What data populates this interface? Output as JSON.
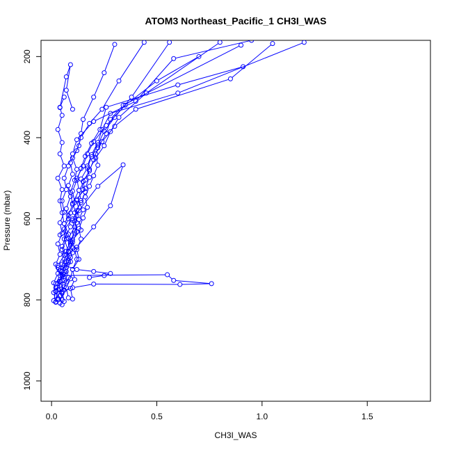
{
  "chart_data": {
    "type": "line",
    "title": "ATOM3 Northeast_Pacific_1 CH3I_WAS",
    "xlabel": "CH3I_WAS",
    "ylabel": "Pressure (mbar)",
    "xlim": [
      -0.05,
      1.8
    ],
    "ylim": [
      1050,
      160
    ],
    "y_reversed": true,
    "grid": false,
    "legend": "none",
    "marker": "open-circle",
    "color": "#0000ff",
    "x_ticks": [
      0,
      0.5,
      1,
      1.5
    ],
    "x_tick_labels": [
      "0.0",
      "0.5",
      "1.0",
      "1.5"
    ],
    "y_ticks": [
      200,
      400,
      600,
      800,
      1000
    ],
    "y_tick_labels": [
      "200",
      "400",
      "600",
      "800",
      "1000"
    ],
    "series": [
      {
        "x": [
          0.02,
          0.01,
          0.02,
          0.04,
          0.03,
          0.06,
          0.05,
          0.07,
          0.06,
          0.05,
          0.04,
          0.05,
          0.03,
          0.06,
          0.04,
          0.05,
          0.03,
          0.05,
          0.04,
          0.06
        ],
        "y": [
          805,
          782,
          760,
          740,
          715,
          690,
          668,
          640,
          612,
          585,
          556,
          528,
          500,
          470,
          440,
          412,
          380,
          345,
          325,
          300
        ]
      },
      {
        "x": [
          0.03,
          0.02,
          0.04,
          0.05,
          0.07,
          0.08,
          0.06,
          0.09,
          0.08,
          0.1,
          0.09,
          0.11,
          0.12,
          0.1,
          0.13,
          0.14,
          0.15,
          0.2,
          0.25,
          0.3
        ],
        "y": [
          800,
          778,
          755,
          730,
          705,
          680,
          650,
          620,
          592,
          565,
          535,
          505,
          478,
          450,
          420,
          390,
          355,
          300,
          240,
          170
        ]
      },
      {
        "x": [
          0.05,
          0.04,
          0.06,
          0.08,
          0.07,
          0.09,
          0.1,
          0.08,
          0.11,
          0.12,
          0.1,
          0.13,
          0.12,
          0.15,
          0.17,
          0.2,
          0.26,
          0.35,
          0.5,
          0.7
        ],
        "y": [
          812,
          790,
          768,
          745,
          720,
          695,
          672,
          648,
          620,
          592,
          562,
          530,
          500,
          470,
          440,
          410,
          370,
          320,
          260,
          200
        ]
      },
      {
        "x": [
          0.02,
          0.03,
          0.05,
          0.04,
          0.06,
          0.05,
          0.07,
          0.06,
          0.08,
          0.07,
          0.09,
          0.08,
          0.1,
          0.09,
          0.12,
          0.14,
          0.18,
          0.24,
          0.32,
          0.44
        ],
        "y": [
          806,
          775,
          752,
          728,
          700,
          676,
          650,
          625,
          600,
          575,
          545,
          518,
          490,
          462,
          432,
          400,
          365,
          330,
          260,
          165
        ]
      },
      {
        "x": [
          0.08,
          0.07,
          0.09,
          0.1,
          0.12,
          0.11,
          0.1,
          0.14,
          0.13,
          0.15,
          0.12,
          0.16,
          0.18,
          0.17,
          0.19,
          0.22,
          0.24,
          0.28,
          0.6,
          1.2
        ],
        "y": [
          795,
          770,
          748,
          725,
          700,
          676,
          652,
          628,
          602,
          578,
          552,
          525,
          498,
          470,
          442,
          412,
          380,
          340,
          290,
          165
        ]
      },
      {
        "x": [
          0.04,
          0.05,
          0.03,
          0.06,
          0.05,
          0.07,
          0.09,
          0.08,
          0.06,
          0.09,
          0.11,
          0.1,
          0.12,
          0.14,
          0.16,
          0.19,
          0.23,
          0.26,
          0.6,
          0.91
        ],
        "y": [
          808,
          784,
          760,
          737,
          712,
          688,
          664,
          638,
          612,
          586,
          560,
          532,
          505,
          476,
          446,
          414,
          380,
          325,
          270,
          225
        ]
      },
      {
        "x": [
          0.01,
          0.02,
          0.01,
          0.03,
          0.02,
          0.04,
          0.03,
          0.05,
          0.04,
          0.06,
          0.05,
          0.07,
          0.06,
          0.08,
          0.1,
          0.12,
          0.2,
          0.4,
          0.58,
          0.95
        ],
        "y": [
          802,
          780,
          758,
          735,
          712,
          688,
          662,
          636,
          610,
          584,
          556,
          528,
          500,
          470,
          440,
          405,
          360,
          310,
          205,
          160
        ]
      },
      {
        "x": [
          0.1,
          0.09,
          0.11,
          0.1,
          0.13,
          0.12,
          0.14,
          0.13,
          0.15,
          0.17,
          0.16,
          0.18,
          0.2,
          0.22,
          0.21,
          0.24,
          0.3,
          0.4,
          0.85,
          1.05
        ],
        "y": [
          798,
          772,
          750,
          725,
          700,
          676,
          650,
          624,
          598,
          572,
          546,
          520,
          494,
          468,
          440,
          410,
          372,
          330,
          255,
          168
        ]
      },
      {
        "x": [
          0.06,
          0.05,
          0.07,
          0.06,
          0.08,
          0.1,
          0.09,
          0.11,
          0.12,
          0.11,
          0.14,
          0.16,
          0.15,
          0.18,
          0.2,
          0.22,
          0.26,
          0.28,
          0.34,
          0.9
        ],
        "y": [
          804,
          780,
          756,
          732,
          708,
          684,
          660,
          635,
          610,
          585,
          560,
          534,
          508,
          482,
          455,
          425,
          390,
          355,
          320,
          172
        ]
      },
      {
        "x": [
          0.03,
          0.04,
          0.06,
          0.05,
          0.08,
          0.07,
          0.09,
          0.11,
          0.1,
          0.12,
          0.14,
          0.13,
          0.16,
          0.18,
          0.21,
          0.25,
          0.28,
          0.32,
          0.45,
          0.8
        ],
        "y": [
          796,
          774,
          752,
          728,
          704,
          680,
          656,
          630,
          604,
          580,
          555,
          530,
          505,
          478,
          450,
          420,
          385,
          350,
          290,
          165
        ]
      },
      {
        "x": [
          0.05,
          0.06,
          0.04,
          0.07,
          0.09,
          0.08,
          0.1,
          0.12,
          0.11,
          0.13,
          0.12,
          0.15,
          0.14,
          0.17,
          0.19,
          0.22,
          0.25,
          0.3,
          0.38,
          0.56
        ],
        "y": [
          800,
          776,
          754,
          730,
          706,
          682,
          658,
          632,
          606,
          580,
          555,
          528,
          502,
          475,
          447,
          418,
          384,
          350,
          300,
          165
        ]
      },
      {
        "x": [
          0.02,
          0.05,
          0.55,
          0.58,
          0.76,
          0.61,
          0.2,
          0.1,
          0.05
        ],
        "y": [
          770,
          740,
          738,
          752,
          760,
          762,
          761,
          770,
          780
        ]
      },
      {
        "x": [
          0.03,
          0.06,
          0.12,
          0.2,
          0.28,
          0.25,
          0.18
        ],
        "y": [
          720,
          715,
          725,
          730,
          735,
          740,
          745
        ]
      },
      {
        "x": [
          0.04,
          0.1,
          0.22,
          0.34,
          0.28,
          0.2,
          0.12
        ],
        "y": [
          640,
          600,
          520,
          467,
          568,
          620,
          670
        ]
      },
      {
        "x": [
          0.04,
          0.07,
          0.09,
          0.07,
          0.1
        ],
        "y": [
          326,
          250,
          220,
          283,
          330
        ]
      }
    ]
  }
}
